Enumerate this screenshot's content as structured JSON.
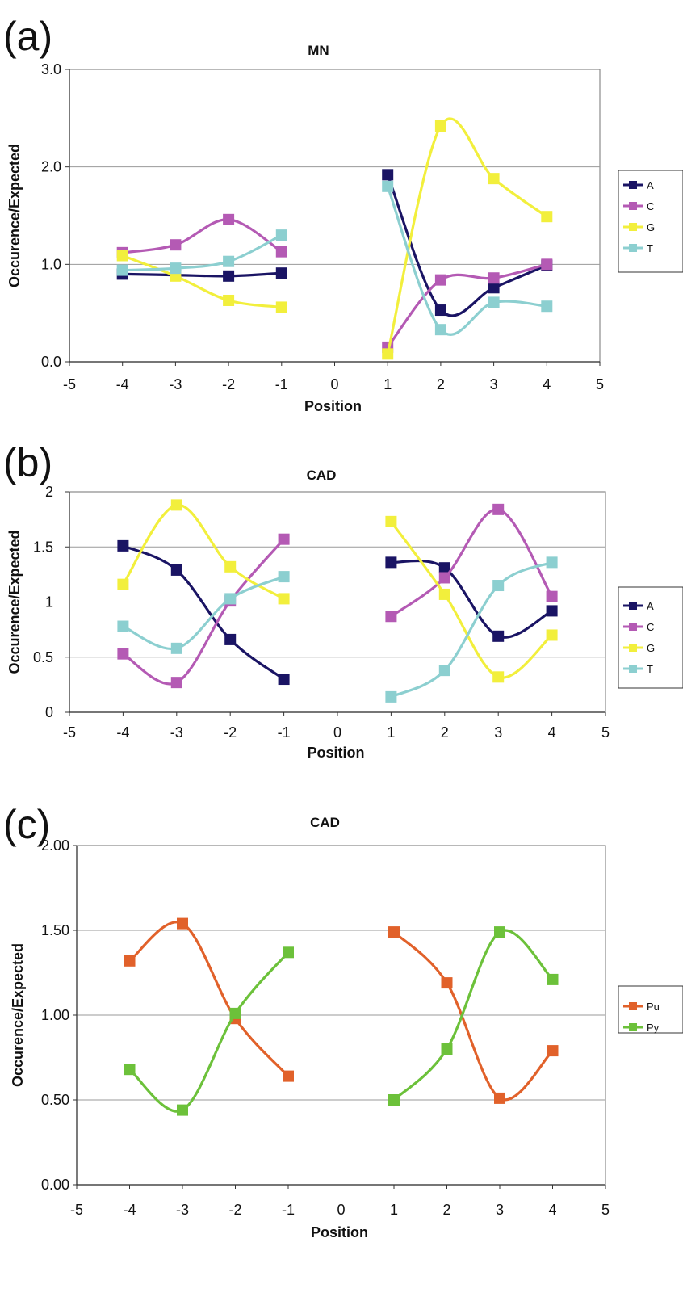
{
  "panels": [
    {
      "letter": "(a)",
      "title": "MN",
      "xlabel": "Position",
      "ylabel": "Occurence/Expected",
      "y_ticks": [
        "0.0",
        "1.0",
        "2.0",
        "3.0"
      ],
      "x_ticks": [
        "-5",
        "-4",
        "-3",
        "-2",
        "-1",
        "0",
        "1",
        "2",
        "3",
        "4",
        "5"
      ],
      "legend": [
        "A",
        "C",
        "G",
        "T"
      ]
    },
    {
      "letter": "(b)",
      "title": "CAD",
      "xlabel": "Position",
      "ylabel": "Occurence/Expected",
      "y_ticks": [
        "0",
        "0.5",
        "1",
        "1.5",
        "2"
      ],
      "x_ticks": [
        "-5",
        "-4",
        "-3",
        "-2",
        "-1",
        "0",
        "1",
        "2",
        "3",
        "4",
        "5"
      ],
      "legend": [
        "A",
        "C",
        "G",
        "T"
      ]
    },
    {
      "letter": "(c)",
      "title": "CAD",
      "xlabel": "Position",
      "ylabel": "Occurence/Expected",
      "y_ticks": [
        "0.00",
        "0.50",
        "1.00",
        "1.50",
        "2.00"
      ],
      "x_ticks": [
        "-5",
        "-4",
        "-3",
        "-2",
        "-1",
        "0",
        "1",
        "2",
        "3",
        "4",
        "5"
      ],
      "legend": [
        "Pu",
        "Py"
      ]
    }
  ],
  "chart_data": [
    {
      "type": "line",
      "title": "MN",
      "xlabel": "Position",
      "ylabel": "Occurence/Expected",
      "xlim": [
        -5,
        5
      ],
      "ylim": [
        0,
        3
      ],
      "grid": true,
      "legend_position": "right",
      "segments": [
        [
          -4,
          -3,
          -2,
          -1
        ],
        [
          1,
          2,
          3,
          4
        ]
      ],
      "series": [
        {
          "name": "A",
          "color": "#1a1464",
          "values": [
            0.9,
            0.89,
            0.88,
            0.91,
            1.92,
            0.53,
            0.76,
            0.99
          ]
        },
        {
          "name": "C",
          "color": "#b45ab4",
          "values": [
            1.12,
            1.2,
            1.46,
            1.13,
            0.15,
            0.84,
            0.86,
            1.0
          ]
        },
        {
          "name": "G",
          "color": "#f2ef3c",
          "values": [
            1.09,
            0.88,
            0.63,
            0.56,
            0.08,
            2.42,
            1.88,
            1.49
          ]
        },
        {
          "name": "T",
          "color": "#8ccfd0",
          "values": [
            0.94,
            0.96,
            1.03,
            1.3,
            1.8,
            0.33,
            0.61,
            0.57
          ]
        }
      ]
    },
    {
      "type": "line",
      "title": "CAD",
      "xlabel": "Position",
      "ylabel": "Occurence/Expected",
      "xlim": [
        -5,
        5
      ],
      "ylim": [
        0,
        2
      ],
      "grid": true,
      "legend_position": "right",
      "segments": [
        [
          -4,
          -3,
          -2,
          -1
        ],
        [
          1,
          2,
          3,
          4
        ]
      ],
      "series": [
        {
          "name": "A",
          "color": "#1a1464",
          "values": [
            1.51,
            1.29,
            0.66,
            0.3,
            1.36,
            1.31,
            0.69,
            0.92
          ]
        },
        {
          "name": "C",
          "color": "#b45ab4",
          "values": [
            0.53,
            0.27,
            1.01,
            1.57,
            0.87,
            1.22,
            1.84,
            1.05
          ]
        },
        {
          "name": "G",
          "color": "#f2ef3c",
          "values": [
            1.16,
            1.88,
            1.32,
            1.03,
            1.73,
            1.07,
            0.32,
            0.7
          ]
        },
        {
          "name": "T",
          "color": "#8ccfd0",
          "values": [
            0.78,
            0.58,
            1.03,
            1.23,
            0.14,
            0.38,
            1.15,
            1.36
          ]
        }
      ]
    },
    {
      "type": "line",
      "title": "CAD",
      "xlabel": "Position",
      "ylabel": "Occurence/Expected",
      "xlim": [
        -5,
        5
      ],
      "ylim": [
        0,
        2
      ],
      "grid": true,
      "legend_position": "right",
      "segments": [
        [
          -4,
          -3,
          -2,
          -1
        ],
        [
          1,
          2,
          3,
          4
        ]
      ],
      "series": [
        {
          "name": "Pu",
          "color": "#e1612a",
          "values": [
            1.32,
            1.54,
            0.98,
            0.64,
            1.49,
            1.19,
            0.51,
            0.79
          ]
        },
        {
          "name": "Py",
          "color": "#6cc13a",
          "values": [
            0.68,
            0.44,
            1.01,
            1.37,
            0.5,
            0.8,
            1.49,
            1.21
          ]
        }
      ]
    }
  ]
}
